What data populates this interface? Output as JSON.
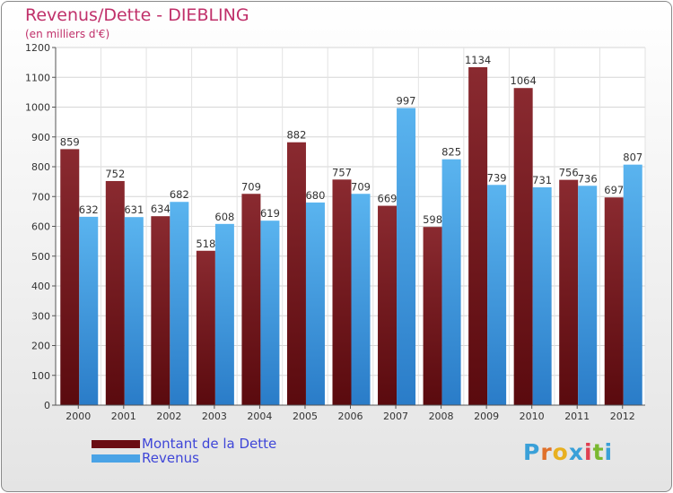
{
  "header": {
    "title": "Revenus/Dette - DIEBLING",
    "subtitle": "(en milliers d'€)"
  },
  "colors": {
    "series_dette": "#7a1a22",
    "series_revenus": "#4aa3e6",
    "title": "#c0306a",
    "legend_text": "#3f46d8"
  },
  "legend": {
    "dette_label": "Montant de la Dette",
    "revenus_label": "Revenus"
  },
  "brand": {
    "letters": [
      "P",
      "r",
      "o",
      "x",
      "i",
      "t",
      "i"
    ],
    "colors": [
      "#3aa0d8",
      "#e0702a",
      "#e8b020",
      "#3aa0d8",
      "#e04050",
      "#7ab830",
      "#3aa0d8"
    ]
  },
  "chart_data": {
    "type": "bar",
    "categories": [
      "2000",
      "2001",
      "2002",
      "2003",
      "2004",
      "2005",
      "2006",
      "2007",
      "2008",
      "2009",
      "2010",
      "2011",
      "2012"
    ],
    "series": [
      {
        "name": "Montant de la Dette",
        "values": [
          859,
          752,
          634,
          518,
          709,
          882,
          757,
          669,
          598,
          1134,
          1064,
          756,
          697
        ]
      },
      {
        "name": "Revenus",
        "values": [
          632,
          631,
          682,
          608,
          619,
          680,
          709,
          997,
          825,
          739,
          731,
          736,
          807
        ]
      }
    ],
    "ylim": [
      0,
      1200
    ],
    "yticks": [
      0,
      100,
      200,
      300,
      400,
      500,
      600,
      700,
      800,
      900,
      1000,
      1100,
      1200
    ],
    "grid": true,
    "legend_position": "bottom-left"
  }
}
